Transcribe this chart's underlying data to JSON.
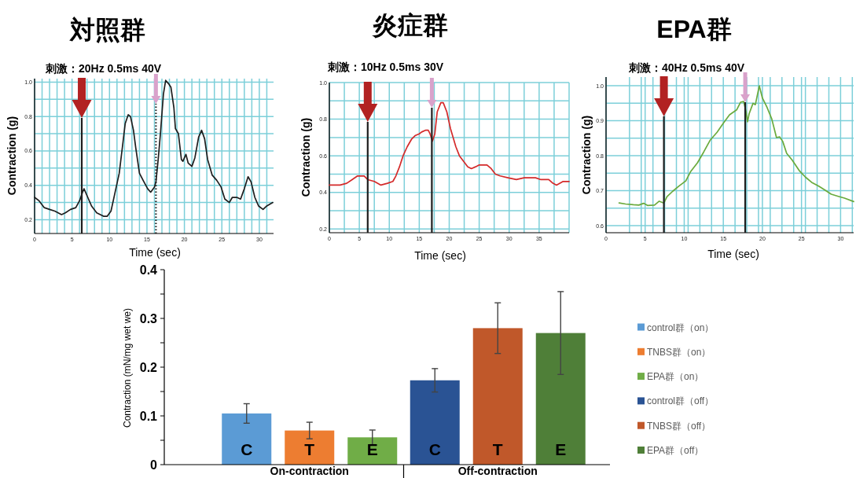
{
  "chart_data": [
    {
      "type": "line",
      "title": "対照群",
      "subtitle": "刺激：20Hz 0.5ms 40V",
      "xlabel": "Time (sec)",
      "ylabel": "Contraction (g)",
      "xlim": [
        0,
        31.9
      ],
      "ylim": [
        0.12,
        1.02
      ],
      "xticks": [
        0,
        {
          "value": 1,
          "label": null
        },
        {
          "value": 2,
          "label": null
        },
        {
          "value": 3,
          "label": null
        },
        {
          "value": 4,
          "label": null
        },
        5,
        {
          "value": 6,
          "label": null
        },
        {
          "value": 7,
          "label": null
        },
        {
          "value": 8,
          "label": null
        },
        {
          "value": 9,
          "label": null
        },
        10,
        {
          "value": 11,
          "label": null
        },
        {
          "value": 12,
          "label": null
        },
        {
          "value": 13,
          "label": null
        },
        {
          "value": 14,
          "label": null
        },
        15,
        {
          "value": 16,
          "label": null
        },
        {
          "value": 17,
          "label": null
        },
        {
          "value": 18,
          "label": null
        },
        {
          "value": 19,
          "label": null
        },
        20,
        {
          "value": 21,
          "label": null
        },
        {
          "value": 22,
          "label": null
        },
        {
          "value": 23,
          "label": null
        },
        {
          "value": 24,
          "label": null
        },
        25,
        {
          "value": 26,
          "label": null
        },
        {
          "value": 27,
          "label": null
        },
        {
          "value": 28,
          "label": null
        },
        {
          "value": 29,
          "label": null
        },
        30,
        {
          "value": 31,
          "label": null
        }
      ],
      "yticks": [
        0.2,
        {
          "value": 0.3,
          "label": null
        },
        0.4,
        {
          "value": 0.5,
          "label": null
        },
        0.6,
        {
          "value": 0.7,
          "label": null
        },
        0.8,
        {
          "value": 0.9,
          "label": null
        },
        {
          "value": 1,
          "label": "1.0"
        }
      ],
      "grid": true,
      "series": [
        {
          "color": "#1e1e1e",
          "x": [
            0,
            0.6,
            1.3,
            2,
            2.7,
            3.6,
            4.1,
            4.8,
            5.5,
            6,
            6.4,
            6.6,
            7.1,
            7.6,
            8.3,
            9.2,
            9.7,
            10.2,
            10.7,
            11.3,
            11.8,
            12.1,
            12.5,
            12.8,
            13.2,
            13.5,
            14,
            14.6,
            15.1,
            15.5,
            16,
            16.2,
            16.5,
            16.8,
            17.2,
            17.5,
            17.9,
            18.2,
            18.6,
            18.8,
            19.2,
            19.6,
            19.8,
            20.2,
            20.5,
            21,
            21.4,
            21.9,
            22.3,
            22.7,
            23.1,
            23.7,
            24.3,
            24.9,
            25.4,
            26,
            26.4,
            27,
            27.5,
            28,
            28.5,
            28.9,
            29.4,
            29.9,
            30.5,
            31,
            31.8
          ],
          "values": [
            0.33,
            0.31,
            0.27,
            0.26,
            0.25,
            0.23,
            0.24,
            0.26,
            0.27,
            0.31,
            0.36,
            0.38,
            0.33,
            0.28,
            0.24,
            0.22,
            0.22,
            0.25,
            0.35,
            0.47,
            0.65,
            0.76,
            0.81,
            0.8,
            0.72,
            0.62,
            0.47,
            0.42,
            0.38,
            0.36,
            0.39,
            0.42,
            0.55,
            0.7,
            0.93,
            1.01,
            0.99,
            0.97,
            0.85,
            0.73,
            0.7,
            0.55,
            0.54,
            0.58,
            0.53,
            0.51,
            0.56,
            0.68,
            0.72,
            0.67,
            0.55,
            0.46,
            0.43,
            0.39,
            0.32,
            0.3,
            0.33,
            0.33,
            0.32,
            0.38,
            0.45,
            0.42,
            0.33,
            0.28,
            0.26,
            0.28,
            0.3
          ]
        }
      ],
      "ref_lines": [
        {
          "axis": "x",
          "value": 6.3,
          "color": "#1e1e1e"
        },
        {
          "axis": "x",
          "value": 16.2,
          "color": "#1e1e1e",
          "line_style": "dotted"
        }
      ]
    },
    {
      "type": "line",
      "title": "炎症群",
      "subtitle": "刺激：10Hz 0.5ms 30V",
      "xlabel": "Time (sec)",
      "ylabel": "Contraction (g)",
      "xlim": [
        0,
        40
      ],
      "ylim": [
        0.18,
        1
      ],
      "xticks": [
        0,
        {
          "value": 2.5,
          "label": null
        },
        5,
        {
          "value": 7.5,
          "label": null
        },
        10,
        {
          "value": 12.5,
          "label": null
        },
        15,
        {
          "value": 17.5,
          "label": null
        },
        20,
        {
          "value": 22.5,
          "label": null
        },
        25,
        {
          "value": 27.5,
          "label": null
        },
        30,
        {
          "value": 32.5,
          "label": null
        },
        35,
        {
          "value": 37.5,
          "label": null
        },
        {
          "value": 40,
          "label": null
        }
      ],
      "yticks": [
        0.2,
        {
          "value": 0.3,
          "label": null
        },
        0.4,
        {
          "value": 0.5,
          "label": null
        },
        0.6,
        {
          "value": 0.7,
          "label": null
        },
        0.8,
        {
          "value": 0.9,
          "label": null
        },
        {
          "value": 1,
          "label": "1.0"
        }
      ],
      "grid": true,
      "series": [
        {
          "color": "#d42a2a",
          "x": [
            0,
            1,
            1.8,
            2.9,
            3.8,
            4.7,
            5.8,
            6.4,
            7.5,
            8.6,
            9.7,
            10.6,
            11.1,
            11.7,
            12.3,
            13,
            13.7,
            14.3,
            15,
            15.4,
            16.1,
            16.5,
            16.8,
            17.2,
            17.6,
            18,
            18.6,
            19,
            19.6,
            20.2,
            21.1,
            21.7,
            22.4,
            23.1,
            23.7,
            24.4,
            25,
            26.3,
            27,
            27.7,
            28.5,
            29.8,
            31.2,
            32.5,
            33.6,
            34.4,
            35.3,
            36.6,
            37.3,
            37.9,
            39,
            40
          ],
          "values": [
            0.44,
            0.44,
            0.44,
            0.45,
            0.47,
            0.49,
            0.49,
            0.47,
            0.46,
            0.44,
            0.45,
            0.46,
            0.49,
            0.54,
            0.6,
            0.65,
            0.69,
            0.71,
            0.72,
            0.73,
            0.74,
            0.74,
            0.72,
            0.68,
            0.72,
            0.84,
            0.89,
            0.89,
            0.84,
            0.75,
            0.65,
            0.6,
            0.57,
            0.54,
            0.53,
            0.54,
            0.55,
            0.55,
            0.53,
            0.5,
            0.49,
            0.48,
            0.47,
            0.48,
            0.48,
            0.48,
            0.47,
            0.47,
            0.45,
            0.44,
            0.46,
            0.46
          ]
        }
      ],
      "ref_lines": [
        {
          "axis": "x",
          "value": 6.4,
          "color": "#1e1e1e"
        },
        {
          "axis": "x",
          "value": 17.1,
          "color": "#1e1e1e"
        }
      ]
    },
    {
      "type": "line",
      "title": "EPA群",
      "subtitle": "刺激：40Hz 0.5ms 40V",
      "xlabel": "Time (sec)",
      "ylabel": "Contraction (g)",
      "xlim": [
        0,
        31.67
      ],
      "ylim": [
        0.58,
        1.025
      ],
      "xticks": [
        0,
        {
          "value": 3,
          "label": null
        },
        {
          "value": 4.5,
          "label": null
        },
        5,
        {
          "value": 6,
          "label": null
        },
        {
          "value": 7.5,
          "label": null
        },
        {
          "value": 9,
          "label": null
        },
        10,
        {
          "value": 10.5,
          "label": null
        },
        {
          "value": 12,
          "label": null
        },
        {
          "value": 13.5,
          "label": null
        },
        15,
        {
          "value": 16.5,
          "label": null
        },
        {
          "value": 18,
          "label": null
        },
        {
          "value": 19.5,
          "label": null
        },
        20,
        {
          "value": 21,
          "label": null
        },
        {
          "value": 22.5,
          "label": null
        },
        {
          "value": 24,
          "label": null
        },
        25,
        {
          "value": 25.5,
          "label": null
        },
        {
          "value": 27,
          "label": null
        },
        {
          "value": 28.5,
          "label": null
        },
        30,
        {
          "value": 31.5,
          "label": null
        }
      ],
      "yticks": [
        0.6,
        {
          "value": 0.65,
          "label": null
        },
        0.7,
        {
          "value": 0.75,
          "label": null
        },
        0.8,
        {
          "value": 0.85,
          "label": null
        },
        0.9,
        {
          "value": 0.95,
          "label": null
        },
        {
          "value": 1,
          "label": "1.0"
        }
      ],
      "grid": true,
      "series": [
        {
          "color": "#6aaa3c",
          "x": [
            1.67,
            2.5,
            3.5,
            4.2,
            4.8,
            5.3,
            6.2,
            6.8,
            7.4,
            7.8,
            8.5,
            9.3,
            10.2,
            10.8,
            11.7,
            12.5,
            13.3,
            14.2,
            15,
            15.8,
            16.7,
            17.2,
            17.6,
            17.9,
            18.1,
            18.3,
            18.8,
            19.1,
            19.6,
            20,
            20.6,
            21.2,
            21.8,
            22.2,
            22.6,
            23.1,
            23.8,
            24.7,
            25.5,
            26.3,
            27.2,
            28,
            28.8,
            29.7,
            30.5,
            31.67
          ],
          "values": [
            0.665,
            0.662,
            0.66,
            0.659,
            0.664,
            0.658,
            0.659,
            0.67,
            0.665,
            0.683,
            0.698,
            0.713,
            0.728,
            0.754,
            0.78,
            0.811,
            0.844,
            0.867,
            0.893,
            0.917,
            0.931,
            0.953,
            0.955,
            0.927,
            0.897,
            0.92,
            0.95,
            0.946,
            1.0,
            0.965,
            0.938,
            0.905,
            0.852,
            0.854,
            0.841,
            0.807,
            0.788,
            0.758,
            0.739,
            0.724,
            0.713,
            0.702,
            0.69,
            0.684,
            0.679,
            0.669
          ]
        }
      ],
      "ref_lines": [
        {
          "axis": "x",
          "value": 7.4,
          "color": "#1e1e1e"
        },
        {
          "axis": "x",
          "value": 17.8,
          "color": "#1e1e1e"
        }
      ]
    },
    {
      "type": "bar",
      "categories": [
        "On-contraction",
        "Off-contraction"
      ],
      "ylabel": "Contraction (mN/mg wet we)",
      "ylim": [
        0,
        0.4
      ],
      "yticks": [
        0,
        {
          "value": 0.05,
          "label": null
        },
        0.1,
        {
          "value": 0.15,
          "label": null
        },
        0.2,
        {
          "value": 0.25,
          "label": null
        },
        0.3,
        {
          "value": 0.35,
          "label": null
        },
        0.4
      ],
      "legend": "right",
      "series": [
        {
          "name": "control群（on）",
          "color": "#5b9bd5",
          "values": [
            0.105,
            null
          ],
          "errors": [
            0.02,
            null
          ],
          "value_labels": [
            "C",
            null
          ]
        },
        {
          "name": "TNBS群（on）",
          "color": "#ed7d31",
          "values": [
            0.07,
            null
          ],
          "errors": [
            0.017,
            null
          ],
          "value_labels": [
            "T",
            null
          ]
        },
        {
          "name": "EPA群（on）",
          "color": "#70ad47",
          "values": [
            0.056,
            null
          ],
          "errors": [
            0.015,
            null
          ],
          "value_labels": [
            "E",
            null
          ]
        },
        {
          "name": "control群（off）",
          "color": "#2a5394",
          "values": [
            null,
            0.173
          ],
          "errors": [
            null,
            0.024
          ],
          "value_labels": [
            null,
            "C"
          ]
        },
        {
          "name": "TNBS群（off）",
          "color": "#c0582a",
          "values": [
            null,
            0.28
          ],
          "errors": [
            null,
            0.052
          ],
          "value_labels": [
            null,
            "T"
          ]
        },
        {
          "name": "EPA群（off）",
          "color": "#4f7f38",
          "values": [
            null,
            0.27
          ],
          "errors": [
            null,
            0.085
          ],
          "value_labels": [
            null,
            "E"
          ]
        }
      ]
    }
  ]
}
